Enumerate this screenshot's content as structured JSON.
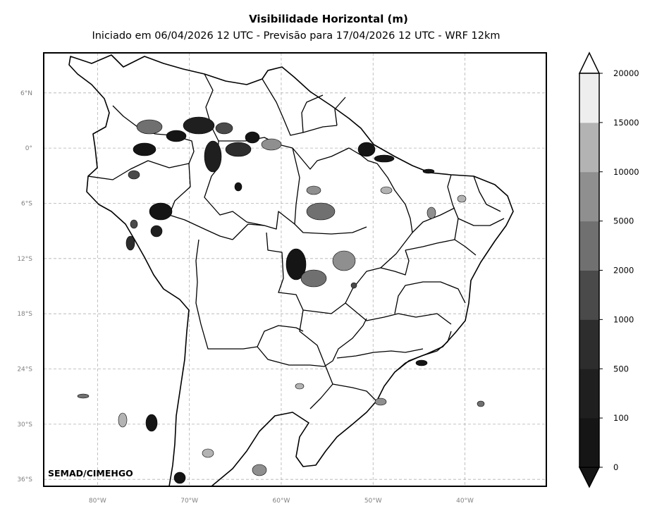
{
  "title": "Visibilidade Horizontal (m)",
  "subtitle": "Iniciado em 06/04/2026 12 UTC - Previsão para 17/04/2026 12 UTC - WRF 12km",
  "credit": "SEMAD/CIMEHGO",
  "map": {
    "lon_range": [
      -85.86,
      -31.14
    ],
    "lat_range": [
      -36.75,
      10.35
    ],
    "lon_ticks": [
      "80°W",
      "70°W",
      "60°W",
      "50°W",
      "40°W"
    ],
    "lat_ticks": [
      "6°N",
      "0°",
      "6°S",
      "12°S",
      "18°S",
      "24°S",
      "30°S",
      "36°S"
    ],
    "grid": true
  },
  "colorbar": {
    "labels": [
      "0",
      "100",
      "500",
      "1000",
      "2000",
      "5000",
      "10000",
      "15000",
      "20000"
    ],
    "colors": [
      "#151515",
      "#1f1f1f",
      "#2d2d2d",
      "#4a4a4a",
      "#707070",
      "#8f8f8f",
      "#b3b3b3",
      "#eeeeee"
    ],
    "extend": "both"
  }
}
